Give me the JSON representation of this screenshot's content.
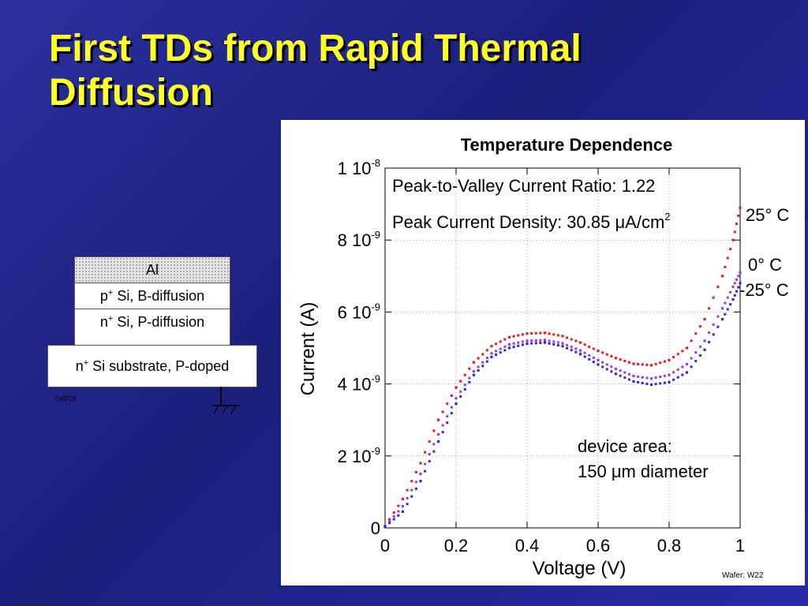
{
  "slide": {
    "title": "First TDs from Rapid Thermal Diffusion"
  },
  "diagram": {
    "layers": [
      {
        "text": "Al"
      },
      {
        "base": "p",
        "sup": "+",
        "rest": " Si, B-diffusion"
      },
      {
        "base": "n",
        "sup": "+",
        "rest": " Si, P-diffusion"
      },
      {
        "base": "n",
        "sup": "+",
        "rest": " Si substrate, P-doped"
      }
    ],
    "id_label": "2s0716"
  },
  "chart_data": {
    "type": "scatter",
    "title": "Temperature Dependence",
    "xlabel": "Voltage (V)",
    "ylabel": "Current (A)",
    "xlim": [
      0,
      1
    ],
    "ylim": [
      0,
      1e-08
    ],
    "x_ticks": [
      "0",
      "0.2",
      "0.4",
      "0.6",
      "0.8",
      "1"
    ],
    "y_ticks": [
      {
        "value": 0,
        "mantissa": "0",
        "exp": ""
      },
      {
        "value": 2e-09,
        "mantissa": "2 10",
        "exp": "-9"
      },
      {
        "value": 4e-09,
        "mantissa": "4 10",
        "exp": "-9"
      },
      {
        "value": 6e-09,
        "mantissa": "6 10",
        "exp": "-9"
      },
      {
        "value": 8e-09,
        "mantissa": "8 10",
        "exp": "-9"
      },
      {
        "value": 1e-08,
        "mantissa": "1 10",
        "exp": "-8"
      }
    ],
    "annotations": {
      "pvr": "Peak-to-Valley Current Ratio: 1.22",
      "density_prefix": "Peak Current Density: 30.85 μA/cm",
      "density_sup": "2",
      "area_line1": "device area:",
      "area_line2": "150 μm diameter",
      "wafer": "Wafer: W22"
    },
    "series": [
      {
        "name": "25° C",
        "color": "#e8191e",
        "x": [
          0,
          0.05,
          0.1,
          0.15,
          0.2,
          0.25,
          0.3,
          0.35,
          0.4,
          0.45,
          0.5,
          0.55,
          0.6,
          0.65,
          0.7,
          0.75,
          0.8,
          0.85,
          0.9,
          0.95,
          0.98,
          1.0
        ],
        "y": [
          5e-11,
          8e-10,
          1.8e-09,
          3e-09,
          3.9e-09,
          4.6e-09,
          5.05e-09,
          5.3e-09,
          5.4e-09,
          5.42e-09,
          5.33e-09,
          5.15e-09,
          4.92e-09,
          4.72e-09,
          4.56e-09,
          4.52e-09,
          4.66e-09,
          5e-09,
          5.8e-09,
          7e-09,
          8e-09,
          8.9e-09
        ]
      },
      {
        "name": "0° C",
        "color": "#9a3cd8",
        "x": [
          0,
          0.05,
          0.1,
          0.15,
          0.2,
          0.25,
          0.3,
          0.35,
          0.4,
          0.45,
          0.5,
          0.55,
          0.6,
          0.65,
          0.7,
          0.75,
          0.8,
          0.85,
          0.9,
          0.95,
          0.98,
          1.0
        ],
        "y": [
          4e-11,
          6e-10,
          1.5e-09,
          2.6e-09,
          3.6e-09,
          4.35e-09,
          4.85e-09,
          5.1e-09,
          5.2e-09,
          5.22e-09,
          5.13e-09,
          4.93e-09,
          4.66e-09,
          4.42e-09,
          4.22e-09,
          4.15e-09,
          4.25e-09,
          4.55e-09,
          5.2e-09,
          6.1e-09,
          6.7e-09,
          7.1e-09
        ]
      },
      {
        "name": "-25° C",
        "color": "#2828d8",
        "x": [
          0,
          0.05,
          0.1,
          0.15,
          0.2,
          0.25,
          0.3,
          0.35,
          0.4,
          0.45,
          0.5,
          0.55,
          0.6,
          0.65,
          0.7,
          0.75,
          0.8,
          0.85,
          0.9,
          0.95,
          0.98,
          1.0
        ],
        "y": [
          3e-11,
          4.5e-10,
          1.3e-09,
          2.4e-09,
          3.45e-09,
          4.25e-09,
          4.75e-09,
          5e-09,
          5.12e-09,
          5.15e-09,
          5.05e-09,
          4.83e-09,
          4.54e-09,
          4.28e-09,
          4.07e-09,
          3.98e-09,
          4.05e-09,
          4.32e-09,
          4.95e-09,
          5.8e-09,
          6.35e-09,
          6.8e-09
        ]
      }
    ]
  }
}
